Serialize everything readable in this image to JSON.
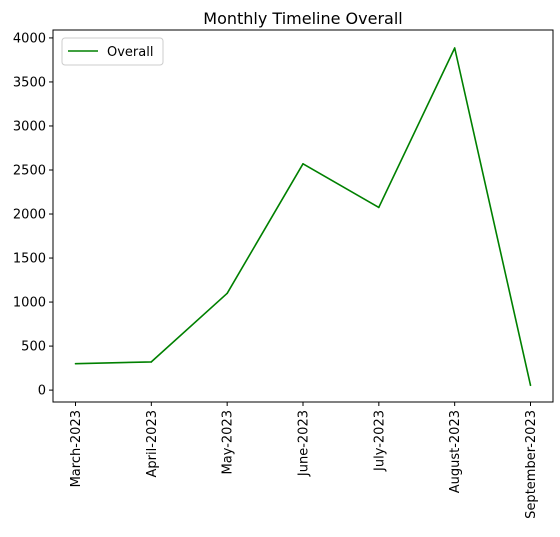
{
  "chart_data": {
    "type": "line",
    "title": "Monthly Timeline Overall",
    "xlabel": "",
    "ylabel": "",
    "categories": [
      "March-2023",
      "April-2023",
      "May-2023",
      "June-2023",
      "July-2023",
      "August-2023",
      "September-2023"
    ],
    "series": [
      {
        "name": "Overall",
        "values": [
          300,
          320,
          1100,
          2570,
          2075,
          3885,
          55
        ],
        "color": "#008000"
      }
    ],
    "ylim": [
      -135,
      4090
    ],
    "yticks": [
      0,
      500,
      1000,
      1500,
      2000,
      2500,
      3000,
      3500,
      4000
    ],
    "grid": false,
    "legend": "top-left"
  }
}
